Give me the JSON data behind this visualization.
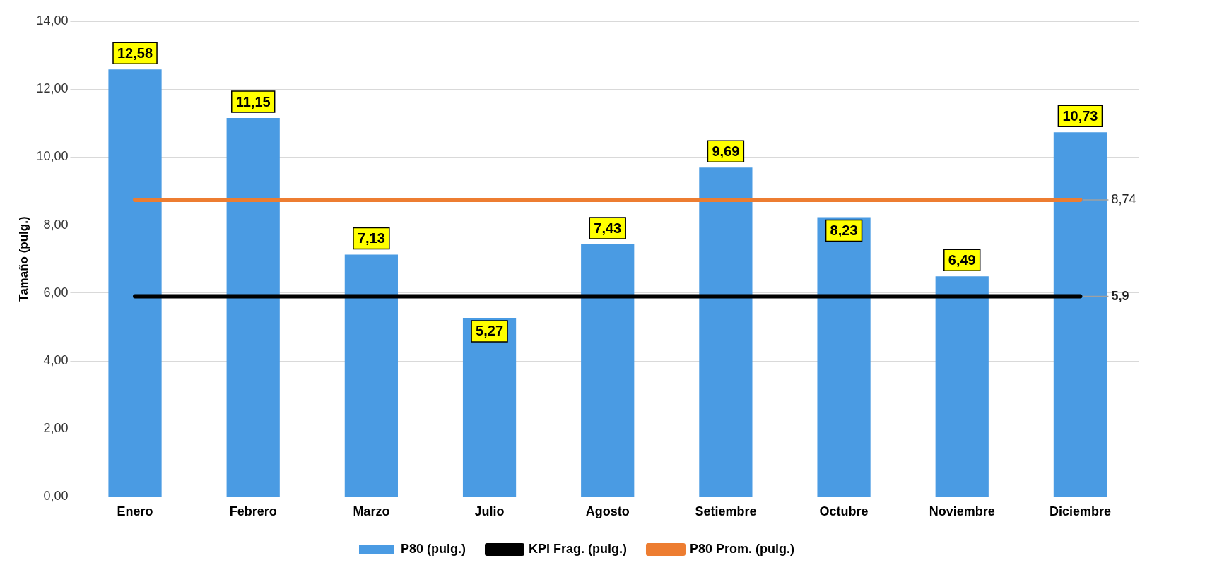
{
  "chart_data": {
    "type": "bar",
    "ylabel": "Tamaño (pulg.)",
    "categories": [
      "Enero",
      "Febrero",
      "Marzo",
      "Julio",
      "Agosto",
      "Setiembre",
      "Octubre",
      "Noviembre",
      "Diciembre"
    ],
    "series": [
      {
        "name": "P80 (pulg.)",
        "color": "#4a9be3",
        "values": [
          12.58,
          11.15,
          7.13,
          5.27,
          7.43,
          9.69,
          8.23,
          6.49,
          10.73
        ],
        "value_labels": [
          "12,58",
          "11,15",
          "7,13",
          "5,27",
          "7,43",
          "9,69",
          "8,23",
          "6,49",
          "10,73"
        ]
      },
      {
        "name": "KPI Frag. (pulg.)",
        "type": "line",
        "color": "#000000",
        "values": [
          5.9,
          5.9,
          5.9,
          5.9,
          5.9,
          5.9,
          5.9,
          5.9,
          5.9
        ],
        "value_labels": [
          null,
          null,
          null,
          null,
          null,
          null,
          null,
          null,
          "5,9"
        ]
      },
      {
        "name": "P80 Prom. (pulg.)",
        "type": "line",
        "color": "#ed7d31",
        "values": [
          8.74,
          8.74,
          8.74,
          8.74,
          8.74,
          8.74,
          8.74,
          8.74,
          8.74
        ],
        "value_labels": [
          null,
          null,
          null,
          null,
          null,
          null,
          null,
          null,
          "8,74"
        ]
      }
    ],
    "ylim": [
      0,
      14
    ],
    "yticks": [
      {
        "value": 0,
        "label": "0,00"
      },
      {
        "value": 2,
        "label": "2,00"
      },
      {
        "value": 4,
        "label": "4,00"
      },
      {
        "value": 6,
        "label": "6,00"
      },
      {
        "value": 8,
        "label": "8,00"
      },
      {
        "value": 10,
        "label": "10,00"
      },
      {
        "value": 12,
        "label": "12,00"
      },
      {
        "value": 14,
        "label": "14,00"
      }
    ],
    "grid": "y",
    "legend": "bottom",
    "marker": "none",
    "line_style": "solid"
  }
}
